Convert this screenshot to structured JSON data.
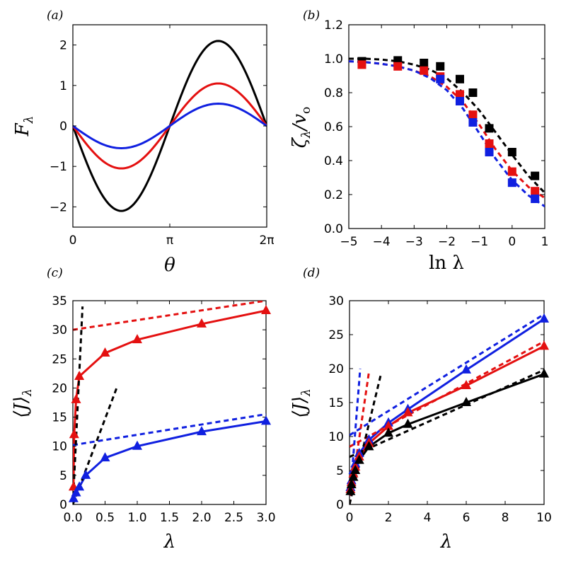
{
  "colors": {
    "black": "#000000",
    "red": "#e41010",
    "blue": "#1020e0"
  },
  "chart_data": [
    {
      "id": "a",
      "type": "line",
      "panel_label": "(a)",
      "xlabel": "θ",
      "ylabel": "F",
      "ylabel_sub": "λ",
      "xlim": [
        0,
        6.2832
      ],
      "ylim": [
        -2.5,
        2.5
      ],
      "xticks": [
        0,
        3.1416,
        6.2832
      ],
      "xtick_labels": [
        "0",
        "π",
        "2π"
      ],
      "yticks": [
        -2,
        -1,
        0,
        1,
        2
      ],
      "ytick_labels": [
        "−2",
        "−1",
        "0",
        "1",
        "2"
      ],
      "series": [
        {
          "name": "black",
          "color": "black",
          "function": "-2.1*sin(theta)",
          "amplitude": 2.1
        },
        {
          "name": "red",
          "color": "red",
          "function": "-1.05*sin(theta)",
          "amplitude": 1.05
        },
        {
          "name": "blue",
          "color": "blue",
          "function": "-0.55*sin(theta)",
          "amplitude": 0.55
        }
      ]
    },
    {
      "id": "b",
      "type": "scatter",
      "panel_label": "(b)",
      "xlabel": "ln λ",
      "ylabel": "ζ",
      "ylabel_sub": "λ",
      "ylabel_rest": "/v",
      "ylabel_rest_sub": "o",
      "xlim": [
        -5,
        1
      ],
      "ylim": [
        0,
        1.2
      ],
      "xticks": [
        -5,
        -4,
        -3,
        -2,
        -1,
        0,
        1
      ],
      "xtick_labels": [
        "−5",
        "−4",
        "−3",
        "−2",
        "−1",
        "0",
        "1"
      ],
      "yticks": [
        0,
        0.2,
        0.4,
        0.6,
        0.8,
        1.0,
        1.2
      ],
      "ytick_labels": [
        "0.0",
        "0.2",
        "0.4",
        "0.6",
        "0.8",
        "1.0",
        "1.2"
      ],
      "series": [
        {
          "name": "black",
          "color": "black",
          "marker": "square",
          "x": [
            -4.6,
            -3.5,
            -2.7,
            -2.2,
            -1.6,
            -1.2,
            -0.7,
            0.0,
            0.7
          ],
          "y": [
            0.985,
            0.99,
            0.975,
            0.955,
            0.88,
            0.8,
            0.59,
            0.45,
            0.31
          ],
          "fit_x": [
            -5,
            -4.5,
            -4,
            -3.5,
            -3,
            -2.5,
            -2,
            -1.5,
            -1,
            -0.5,
            0,
            0.5,
            1
          ],
          "fit_y": [
            1.0,
            1.0,
            0.995,
            0.985,
            0.965,
            0.935,
            0.885,
            0.8,
            0.695,
            0.565,
            0.435,
            0.31,
            0.21
          ]
        },
        {
          "name": "red",
          "color": "red",
          "marker": "square",
          "x": [
            -4.6,
            -3.5,
            -2.7,
            -2.2,
            -1.6,
            -1.2,
            -0.7,
            0.0,
            0.7
          ],
          "y": [
            0.965,
            0.955,
            0.93,
            0.895,
            0.79,
            0.67,
            0.5,
            0.335,
            0.22
          ],
          "fit_x": [
            -5,
            -4.5,
            -4,
            -3.5,
            -3,
            -2.5,
            -2,
            -1.5,
            -1,
            -0.5,
            0,
            0.5,
            1
          ],
          "fit_y": [
            0.985,
            0.98,
            0.97,
            0.955,
            0.93,
            0.895,
            0.835,
            0.745,
            0.61,
            0.465,
            0.34,
            0.245,
            0.18
          ]
        },
        {
          "name": "blue",
          "color": "blue",
          "marker": "square",
          "x": [
            -2.2,
            -1.6,
            -1.2,
            -0.7,
            0.0,
            0.7
          ],
          "y": [
            0.88,
            0.75,
            0.625,
            0.45,
            0.27,
            0.175
          ],
          "fit_x": [
            -5,
            -4.5,
            -4,
            -3.5,
            -3,
            -2.5,
            -2,
            -1.5,
            -1,
            -0.5,
            0,
            0.5,
            1
          ],
          "fit_y": [
            0.985,
            0.98,
            0.97,
            0.955,
            0.93,
            0.885,
            0.815,
            0.705,
            0.56,
            0.41,
            0.285,
            0.195,
            0.13
          ]
        }
      ]
    },
    {
      "id": "c",
      "type": "line",
      "panel_label": "(c)",
      "xlabel": "λ",
      "ylabel": "⟨J⟩",
      "ylabel_sub": "λ",
      "xlim": [
        0,
        3
      ],
      "ylim": [
        0,
        35
      ],
      "xticks": [
        0,
        0.5,
        1,
        1.5,
        2,
        2.5,
        3
      ],
      "xtick_labels": [
        "0.0",
        "0.5",
        "1.0",
        "1.5",
        "2.0",
        "2.5",
        "3.0"
      ],
      "yticks": [
        0,
        5,
        10,
        15,
        20,
        25,
        30,
        35
      ],
      "ytick_labels": [
        "0",
        "5",
        "10",
        "15",
        "20",
        "25",
        "30",
        "35"
      ],
      "series": [
        {
          "name": "red",
          "color": "red",
          "marker": "triangle",
          "style": "solid",
          "x": [
            0.01,
            0.02,
            0.05,
            0.1,
            0.5,
            1.0,
            2.0,
            3.0
          ],
          "y": [
            3,
            12,
            18,
            22,
            26,
            28.3,
            31,
            33.3
          ]
        },
        {
          "name": "blue",
          "color": "blue",
          "marker": "triangle",
          "style": "solid",
          "x": [
            0.01,
            0.05,
            0.1,
            0.2,
            0.5,
            1.0,
            2.0,
            3.0
          ],
          "y": [
            1,
            2,
            3,
            5,
            8,
            10,
            12.5,
            14.3
          ]
        },
        {
          "name": "red-asymptote",
          "color": "red",
          "style": "dashed",
          "x": [
            0,
            3
          ],
          "y": [
            30,
            35
          ]
        },
        {
          "name": "blue-asymptote",
          "color": "blue",
          "style": "dashed",
          "x": [
            0,
            3
          ],
          "y": [
            10.2,
            15.5
          ]
        },
        {
          "name": "black-slope-steep",
          "color": "black",
          "style": "dashed",
          "x": [
            0,
            0.15
          ],
          "y": [
            0,
            34
          ]
        },
        {
          "name": "black-slope-shallow",
          "color": "black",
          "style": "dashed",
          "x": [
            0,
            0.68
          ],
          "y": [
            0,
            20
          ]
        }
      ]
    },
    {
      "id": "d",
      "type": "line",
      "panel_label": "(d)",
      "xlabel": "λ",
      "ylabel": "⟨J⟩",
      "ylabel_sub": "λ",
      "xlim": [
        0,
        10
      ],
      "ylim": [
        0,
        30
      ],
      "xticks": [
        0,
        2,
        4,
        6,
        8,
        10
      ],
      "xtick_labels": [
        "0",
        "2",
        "4",
        "6",
        "8",
        "10"
      ],
      "yticks": [
        0,
        5,
        10,
        15,
        20,
        25,
        30
      ],
      "ytick_labels": [
        "0",
        "5",
        "10",
        "15",
        "20",
        "25",
        "30"
      ],
      "series": [
        {
          "name": "blue",
          "color": "blue",
          "marker": "triangle",
          "style": "solid",
          "x": [
            0.05,
            0.1,
            0.2,
            0.3,
            0.5,
            1.0,
            2.0,
            3.0,
            6.0,
            10.0
          ],
          "y": [
            2.5,
            3.5,
            5,
            6,
            7.5,
            9.5,
            12,
            14,
            19.8,
            27.3
          ]
        },
        {
          "name": "red",
          "color": "red",
          "marker": "triangle",
          "style": "solid",
          "x": [
            0.05,
            0.1,
            0.2,
            0.3,
            0.5,
            1.0,
            2.0,
            3.0,
            6.0,
            10.0
          ],
          "y": [
            2.2,
            3.2,
            4.5,
            5.5,
            7,
            9,
            11.5,
            13.5,
            17.5,
            23.3
          ]
        },
        {
          "name": "black",
          "color": "black",
          "marker": "triangle",
          "style": "solid",
          "x": [
            0.05,
            0.1,
            0.2,
            0.3,
            0.5,
            1.0,
            2.0,
            3.0,
            6.0,
            10.0
          ],
          "y": [
            1.9,
            2.9,
            4,
            5,
            6.5,
            8.5,
            10.5,
            11.8,
            15,
            19.2
          ]
        },
        {
          "name": "blue-asymptote",
          "color": "blue",
          "style": "dashed",
          "x": [
            0,
            10
          ],
          "y": [
            10.2,
            28
          ]
        },
        {
          "name": "red-asymptote",
          "color": "red",
          "style": "dashed",
          "x": [
            0,
            10
          ],
          "y": [
            8.5,
            24
          ]
        },
        {
          "name": "black-asymptote",
          "color": "black",
          "style": "dashed",
          "x": [
            0,
            10
          ],
          "y": [
            7,
            19.8
          ]
        },
        {
          "name": "blue-slope",
          "color": "blue",
          "style": "dashed",
          "x": [
            0,
            0.55
          ],
          "y": [
            0,
            20
          ]
        },
        {
          "name": "red-slope",
          "color": "red",
          "style": "dashed",
          "x": [
            0,
            1.0
          ],
          "y": [
            0,
            19.5
          ]
        },
        {
          "name": "black-slope",
          "color": "black",
          "style": "dashed",
          "x": [
            0,
            1.6
          ],
          "y": [
            0,
            19
          ]
        }
      ]
    }
  ]
}
